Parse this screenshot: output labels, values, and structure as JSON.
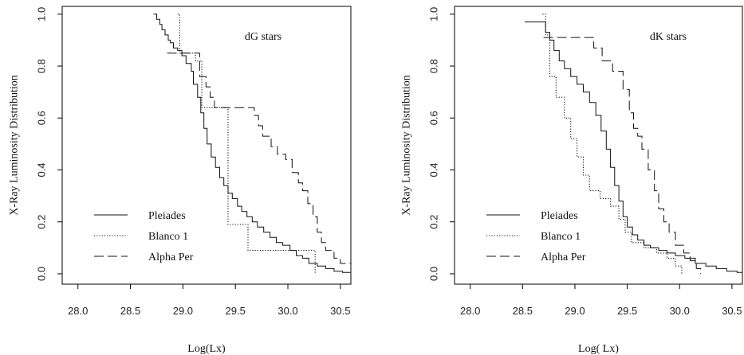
{
  "chart_data": [
    {
      "type": "line",
      "title": "",
      "annotation": "dG stars",
      "xlabel": "Log(Lx)",
      "ylabel": "X-Ray Luminosity Distribution",
      "xlim": [
        27.85,
        30.6
      ],
      "ylim": [
        -0.04,
        1.03
      ],
      "x_ticks": [
        "28.0",
        "28.5",
        "29.0",
        "29.5",
        "30.0",
        "30.5"
      ],
      "y_ticks": [
        "0.0",
        "0.2",
        "0.4",
        "0.6",
        "0.8",
        "1.0"
      ],
      "grid": false,
      "legend_position": "bottom-left",
      "series": [
        {
          "name": "Pleiades",
          "style": "solid",
          "points": [
            [
              28.72,
              1.0
            ],
            [
              28.75,
              0.98
            ],
            [
              28.78,
              0.96
            ],
            [
              28.8,
              0.94
            ],
            [
              28.83,
              0.92
            ],
            [
              28.86,
              0.9
            ],
            [
              28.88,
              0.89
            ],
            [
              28.91,
              0.87
            ],
            [
              28.95,
              0.86
            ],
            [
              28.99,
              0.84
            ],
            [
              29.03,
              0.81
            ],
            [
              29.08,
              0.78
            ],
            [
              29.1,
              0.73
            ],
            [
              29.14,
              0.68
            ],
            [
              29.17,
              0.62
            ],
            [
              29.2,
              0.56
            ],
            [
              29.23,
              0.5
            ],
            [
              29.27,
              0.45
            ],
            [
              29.31,
              0.41
            ],
            [
              29.35,
              0.37
            ],
            [
              29.39,
              0.34
            ],
            [
              29.43,
              0.31
            ],
            [
              29.47,
              0.29
            ],
            [
              29.52,
              0.26
            ],
            [
              29.56,
              0.24
            ],
            [
              29.61,
              0.22
            ],
            [
              29.66,
              0.2
            ],
            [
              29.71,
              0.18
            ],
            [
              29.77,
              0.16
            ],
            [
              29.83,
              0.14
            ],
            [
              29.89,
              0.12
            ],
            [
              29.95,
              0.11
            ],
            [
              30.02,
              0.09
            ],
            [
              30.08,
              0.07
            ],
            [
              30.14,
              0.06
            ],
            [
              30.2,
              0.04
            ],
            [
              30.28,
              0.03
            ],
            [
              30.36,
              0.02
            ],
            [
              30.44,
              0.01
            ],
            [
              30.52,
              0.005
            ],
            [
              30.6,
              0.0
            ]
          ]
        },
        {
          "name": "Blanco 1",
          "style": "dotted",
          "points": [
            [
              28.95,
              1.0
            ],
            [
              28.97,
              0.85
            ],
            [
              29.12,
              0.82
            ],
            [
              29.18,
              0.64
            ],
            [
              29.35,
              0.64
            ],
            [
              29.43,
              0.19
            ],
            [
              29.55,
              0.19
            ],
            [
              29.62,
              0.09
            ],
            [
              30.23,
              0.09
            ],
            [
              30.26,
              0.0
            ]
          ]
        },
        {
          "name": "Alpha Per",
          "style": "longdash",
          "points": [
            [
              28.85,
              0.85
            ],
            [
              29.1,
              0.85
            ],
            [
              29.16,
              0.76
            ],
            [
              29.22,
              0.72
            ],
            [
              29.26,
              0.68
            ],
            [
              29.3,
              0.64
            ],
            [
              29.6,
              0.64
            ],
            [
              29.68,
              0.61
            ],
            [
              29.72,
              0.57
            ],
            [
              29.76,
              0.53
            ],
            [
              29.84,
              0.49
            ],
            [
              29.9,
              0.46
            ],
            [
              29.98,
              0.44
            ],
            [
              30.04,
              0.39
            ],
            [
              30.1,
              0.35
            ],
            [
              30.14,
              0.32
            ],
            [
              30.19,
              0.27
            ],
            [
              30.24,
              0.22
            ],
            [
              30.28,
              0.16
            ],
            [
              30.32,
              0.12
            ],
            [
              30.36,
              0.09
            ],
            [
              30.44,
              0.06
            ],
            [
              30.5,
              0.04
            ],
            [
              30.6,
              0.04
            ]
          ]
        }
      ]
    },
    {
      "type": "line",
      "title": "",
      "annotation": "dK stars",
      "xlabel": "Log( Lx)",
      "ylabel": "X-Ray Luminosity Distribution",
      "xlim": [
        27.85,
        30.6
      ],
      "ylim": [
        -0.04,
        1.03
      ],
      "x_ticks": [
        "28.0",
        "28.5",
        "29.0",
        "29.5",
        "30.0",
        "30.5"
      ],
      "y_ticks": [
        "0.0",
        "0.2",
        "0.4",
        "0.6",
        "0.8",
        "1.0"
      ],
      "grid": false,
      "legend_position": "bottom-left",
      "series": [
        {
          "name": "Pleiades",
          "style": "solid",
          "points": [
            [
              28.52,
              0.97
            ],
            [
              28.68,
              0.97
            ],
            [
              28.72,
              0.93
            ],
            [
              28.76,
              0.9
            ],
            [
              28.8,
              0.86
            ],
            [
              28.85,
              0.82
            ],
            [
              28.9,
              0.79
            ],
            [
              28.96,
              0.76
            ],
            [
              29.02,
              0.73
            ],
            [
              29.08,
              0.7
            ],
            [
              29.14,
              0.66
            ],
            [
              29.2,
              0.61
            ],
            [
              29.25,
              0.55
            ],
            [
              29.3,
              0.48
            ],
            [
              29.34,
              0.41
            ],
            [
              29.38,
              0.34
            ],
            [
              29.42,
              0.28
            ],
            [
              29.46,
              0.22
            ],
            [
              29.5,
              0.18
            ],
            [
              29.55,
              0.15
            ],
            [
              29.6,
              0.13
            ],
            [
              29.66,
              0.11
            ],
            [
              29.72,
              0.1
            ],
            [
              29.8,
              0.09
            ],
            [
              29.88,
              0.08
            ],
            [
              29.96,
              0.07
            ],
            [
              30.05,
              0.06
            ],
            [
              30.15,
              0.04
            ],
            [
              30.25,
              0.03
            ],
            [
              30.35,
              0.02
            ],
            [
              30.45,
              0.01
            ],
            [
              30.55,
              0.005
            ],
            [
              30.6,
              0.0
            ]
          ]
        },
        {
          "name": "Blanco 1",
          "style": "dotted",
          "points": [
            [
              28.69,
              1.0
            ],
            [
              28.72,
              0.92
            ],
            [
              28.76,
              0.76
            ],
            [
              28.82,
              0.68
            ],
            [
              28.9,
              0.6
            ],
            [
              28.96,
              0.52
            ],
            [
              29.02,
              0.45
            ],
            [
              29.08,
              0.38
            ],
            [
              29.14,
              0.32
            ],
            [
              29.24,
              0.29
            ],
            [
              29.34,
              0.26
            ],
            [
              29.42,
              0.21
            ],
            [
              29.48,
              0.16
            ],
            [
              29.54,
              0.12
            ],
            [
              29.66,
              0.1
            ],
            [
              29.78,
              0.08
            ],
            [
              29.88,
              0.06
            ],
            [
              29.96,
              0.03
            ],
            [
              30.02,
              0.0
            ]
          ]
        },
        {
          "name": "Alpha Per",
          "style": "longdash",
          "points": [
            [
              28.7,
              0.91
            ],
            [
              28.78,
              0.91
            ],
            [
              29.12,
              0.91
            ],
            [
              29.18,
              0.87
            ],
            [
              29.26,
              0.82
            ],
            [
              29.36,
              0.78
            ],
            [
              29.46,
              0.71
            ],
            [
              29.52,
              0.62
            ],
            [
              29.56,
              0.56
            ],
            [
              29.6,
              0.53
            ],
            [
              29.64,
              0.48
            ],
            [
              29.7,
              0.4
            ],
            [
              29.76,
              0.32
            ],
            [
              29.8,
              0.25
            ],
            [
              29.85,
              0.2
            ],
            [
              29.9,
              0.16
            ],
            [
              29.96,
              0.11
            ],
            [
              30.04,
              0.08
            ],
            [
              30.1,
              0.05
            ],
            [
              30.16,
              0.02
            ],
            [
              30.2,
              0.0
            ]
          ]
        }
      ]
    }
  ]
}
